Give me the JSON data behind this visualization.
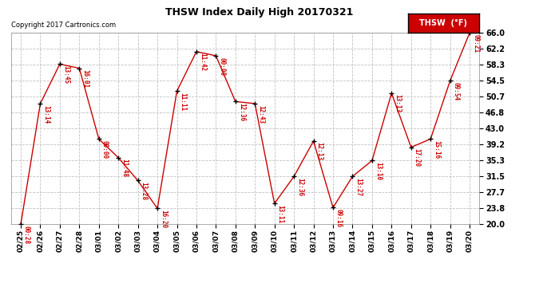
{
  "title": "THSW Index Daily High 20170321",
  "copyright": "Copyright 2017 Cartronics.com",
  "legend_label": "THSW  (°F)",
  "dates": [
    "02/25",
    "02/26",
    "02/27",
    "02/28",
    "03/01",
    "03/02",
    "03/03",
    "03/04",
    "03/05",
    "03/06",
    "03/07",
    "03/08",
    "03/09",
    "03/10",
    "03/11",
    "03/12",
    "03/13",
    "03/14",
    "03/15",
    "03/16",
    "03/17",
    "03/18",
    "03/19",
    "03/20"
  ],
  "values": [
    20.0,
    49.0,
    58.5,
    57.5,
    40.5,
    36.0,
    30.5,
    23.8,
    52.0,
    61.5,
    60.5,
    49.5,
    49.0,
    25.0,
    31.5,
    40.0,
    24.0,
    31.5,
    35.3,
    51.5,
    38.5,
    40.5,
    54.5,
    66.0
  ],
  "time_labels": [
    "00:28",
    "13:14",
    "13:45",
    "16:01",
    "00:00",
    "11:48",
    "13:28",
    "16:20",
    "11:11",
    "11:42",
    "00:00",
    "12:36",
    "12:43",
    "13:11",
    "12:36",
    "12:13",
    "09:16",
    "13:27",
    "13:10",
    "13:13",
    "17:20",
    "15:16",
    "09:54",
    "09:21"
  ],
  "ylim": [
    20.0,
    66.0
  ],
  "yticks": [
    20.0,
    23.8,
    27.7,
    31.5,
    35.3,
    39.2,
    43.0,
    46.8,
    50.7,
    54.5,
    58.3,
    62.2,
    66.0
  ],
  "line_color": "#cc0000",
  "marker_color": "#000000",
  "bg_color": "#ffffff",
  "grid_color": "#c0c0c0",
  "title_color": "#000000",
  "copyright_color": "#000000",
  "label_color": "#cc0000",
  "legend_bg": "#cc0000",
  "legend_text_color": "#ffffff"
}
